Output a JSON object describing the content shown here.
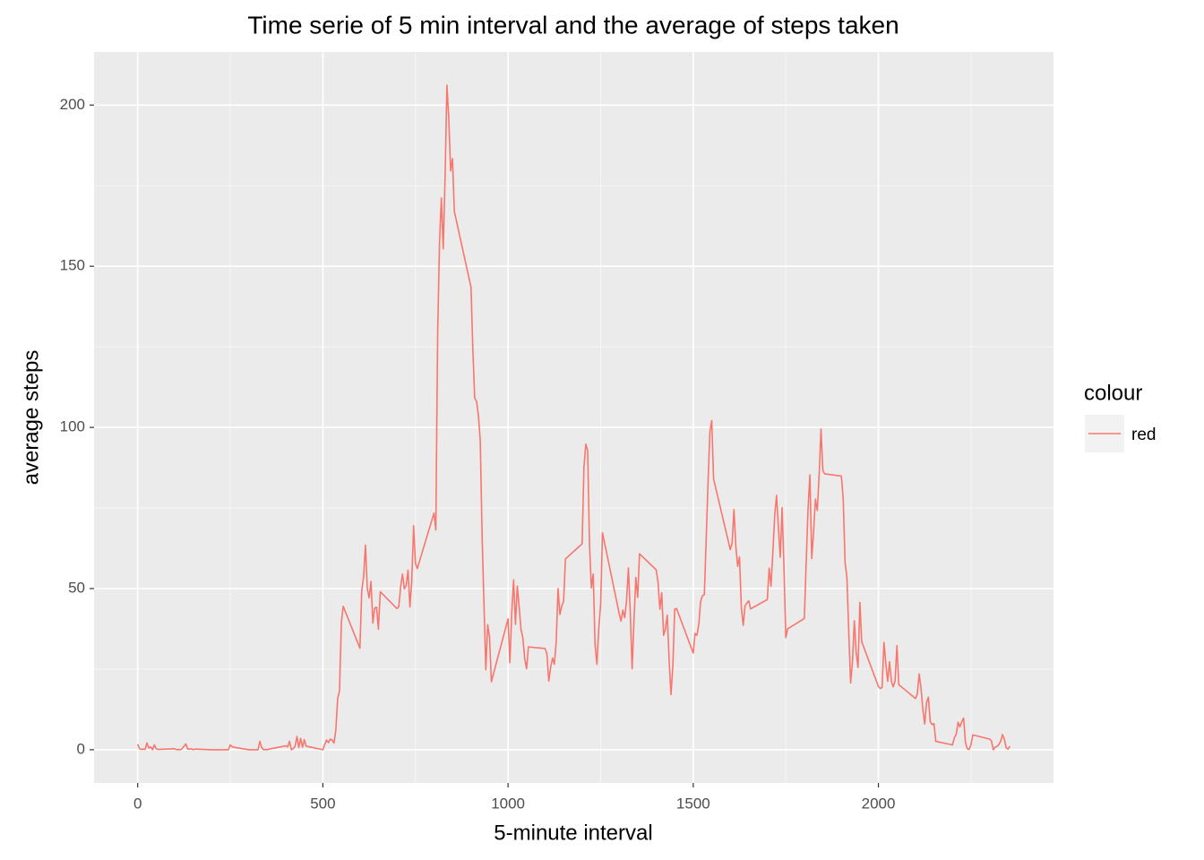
{
  "chart_data": {
    "type": "line",
    "title": "Time serie of 5 min interval and the average of steps taken",
    "x_label": "5-minute interval",
    "y_label": "average steps",
    "legend_title": "colour",
    "legend_position": "right",
    "grid": true,
    "xlim": [
      -117.75,
      2472.75
    ],
    "ylim": [
      -10.31,
      216.48
    ],
    "xticks": [
      0,
      500,
      1000,
      1500,
      2000
    ],
    "yticks": [
      0,
      50,
      100,
      150,
      200
    ],
    "x": [
      0,
      5,
      10,
      15,
      20,
      25,
      30,
      35,
      40,
      45,
      50,
      55,
      100,
      105,
      110,
      115,
      120,
      125,
      130,
      135,
      140,
      145,
      150,
      155,
      200,
      205,
      210,
      215,
      220,
      225,
      230,
      235,
      240,
      245,
      250,
      255,
      300,
      305,
      310,
      315,
      320,
      325,
      330,
      335,
      340,
      345,
      350,
      355,
      400,
      405,
      410,
      415,
      420,
      425,
      430,
      435,
      440,
      445,
      450,
      455,
      500,
      505,
      510,
      515,
      520,
      525,
      530,
      535,
      540,
      545,
      550,
      555,
      600,
      605,
      610,
      615,
      620,
      625,
      630,
      635,
      640,
      645,
      650,
      655,
      700,
      705,
      710,
      715,
      720,
      725,
      730,
      735,
      740,
      745,
      750,
      755,
      800,
      805,
      810,
      815,
      820,
      825,
      830,
      835,
      840,
      845,
      850,
      855,
      900,
      905,
      910,
      915,
      920,
      925,
      930,
      935,
      940,
      945,
      950,
      955,
      1000,
      1005,
      1010,
      1015,
      1020,
      1025,
      1030,
      1035,
      1040,
      1045,
      1050,
      1055,
      1100,
      1105,
      1110,
      1115,
      1120,
      1125,
      1130,
      1135,
      1140,
      1145,
      1150,
      1155,
      1200,
      1205,
      1210,
      1215,
      1220,
      1225,
      1230,
      1235,
      1240,
      1245,
      1250,
      1255,
      1300,
      1305,
      1310,
      1315,
      1320,
      1325,
      1330,
      1335,
      1340,
      1345,
      1350,
      1355,
      1400,
      1405,
      1410,
      1415,
      1420,
      1425,
      1430,
      1435,
      1440,
      1445,
      1450,
      1455,
      1500,
      1505,
      1510,
      1515,
      1520,
      1525,
      1530,
      1535,
      1540,
      1545,
      1550,
      1555,
      1600,
      1605,
      1610,
      1615,
      1620,
      1625,
      1630,
      1635,
      1640,
      1645,
      1650,
      1655,
      1700,
      1705,
      1710,
      1715,
      1720,
      1725,
      1730,
      1735,
      1740,
      1745,
      1750,
      1755,
      1800,
      1805,
      1810,
      1815,
      1820,
      1825,
      1830,
      1835,
      1840,
      1845,
      1850,
      1855,
      1900,
      1905,
      1910,
      1915,
      1920,
      1925,
      1930,
      1935,
      1940,
      1945,
      1950,
      1955,
      2000,
      2005,
      2010,
      2015,
      2020,
      2025,
      2030,
      2035,
      2040,
      2045,
      2050,
      2055,
      2100,
      2105,
      2110,
      2115,
      2120,
      2125,
      2130,
      2135,
      2140,
      2145,
      2150,
      2155,
      2200,
      2205,
      2210,
      2215,
      2220,
      2225,
      2230,
      2235,
      2240,
      2245,
      2250,
      2255,
      2300,
      2305,
      2310,
      2315,
      2320,
      2325,
      2330,
      2335,
      2340,
      2345,
      2350,
      2355
    ],
    "series": [
      {
        "name": "red",
        "color": "#F8766D",
        "values": [
          1.7,
          0.3,
          0.1,
          0.2,
          0.1,
          2.1,
          0.5,
          0.9,
          0,
          1.5,
          0.3,
          0.1,
          0.3,
          0,
          0.1,
          0,
          0.3,
          1.1,
          1.8,
          0.2,
          0.2,
          0.3,
          0,
          0.2,
          0,
          0,
          0,
          0,
          0,
          0,
          0,
          0,
          0,
          0,
          1.5,
          0.9,
          0,
          0,
          0,
          0,
          0,
          0,
          2.6,
          0.7,
          0,
          0.1,
          0,
          0.2,
          1.2,
          0.9,
          2.6,
          0,
          0.3,
          1.1,
          4.1,
          0.7,
          3.5,
          0.8,
          3.1,
          1.1,
          0,
          1.6,
          3,
          2.2,
          3.3,
          3,
          2.1,
          6.1,
          16,
          18.3,
          39.5,
          44.5,
          31.5,
          49.3,
          53.8,
          63.5,
          50,
          47.1,
          52.2,
          39.3,
          44,
          44.2,
          37.4,
          49,
          43.8,
          44.4,
          50.5,
          54.5,
          49.9,
          51,
          55.7,
          44.3,
          52.3,
          69.5,
          57.8,
          56.2,
          73.4,
          68.2,
          129.4,
          157.5,
          171.2,
          155.4,
          177.3,
          206.2,
          195.9,
          179.6,
          183.4,
          167,
          143.5,
          124,
          109.1,
          108.1,
          103.7,
          95.9,
          66.2,
          45.2,
          24.8,
          38.8,
          35,
          21.1,
          40.6,
          27,
          42.4,
          52.7,
          38.9,
          50.8,
          44.3,
          37.4,
          34.7,
          28.3,
          25.1,
          31.9,
          31.4,
          29.7,
          21.3,
          25.5,
          28.4,
          26.5,
          33.4,
          50,
          42,
          44.6,
          46,
          59.2,
          63.9,
          87.7,
          94.8,
          92.8,
          63.4,
          50.2,
          54.5,
          32.4,
          26.5,
          37.7,
          45,
          67.3,
          42.3,
          39.9,
          43.3,
          41,
          46.2,
          56.4,
          42.8,
          25.1,
          39.9,
          53.5,
          47.3,
          60.8,
          55.8,
          52,
          43.6,
          48.7,
          35.5,
          37.5,
          41.8,
          27.5,
          17.1,
          26.1,
          43.6,
          43.8,
          30,
          36.1,
          35.5,
          38.8,
          46,
          47.8,
          48.1,
          65.3,
          82.9,
          98.7,
          102.1,
          84,
          62.1,
          64.1,
          74.5,
          63.2,
          56.9,
          59.8,
          43.9,
          38.6,
          44.7,
          45.5,
          46.2,
          43.7,
          46.6,
          56.3,
          50.7,
          61.2,
          72.7,
          78.9,
          68.9,
          59.7,
          75.1,
          56.5,
          34.8,
          37.5,
          40.7,
          58,
          74.7,
          85.3,
          59.3,
          67.8,
          77.7,
          74.2,
          85.3,
          99.5,
          86.6,
          85.6,
          84.9,
          77.8,
          58,
          53.4,
          36.3,
          20.7,
          27.4,
          40,
          30.2,
          25.5,
          45.7,
          33.5,
          19.6,
          19,
          19.3,
          33.3,
          26.8,
          21.2,
          27.3,
          21.3,
          19.5,
          21.3,
          32.3,
          20.2,
          15.9,
          17.2,
          23.5,
          19.2,
          12.5,
          8,
          14.7,
          16.3,
          8.7,
          7.8,
          8.1,
          2.6,
          1.5,
          3.7,
          4.8,
          8.5,
          7.1,
          8.7,
          9.8,
          2.2,
          0.3,
          0.1,
          1.6,
          4.6,
          3.3,
          2.8,
          0,
          0.8,
          1,
          1.6,
          2.6,
          4.7,
          3.3,
          0.6,
          0.2,
          1.1
        ]
      }
    ]
  }
}
